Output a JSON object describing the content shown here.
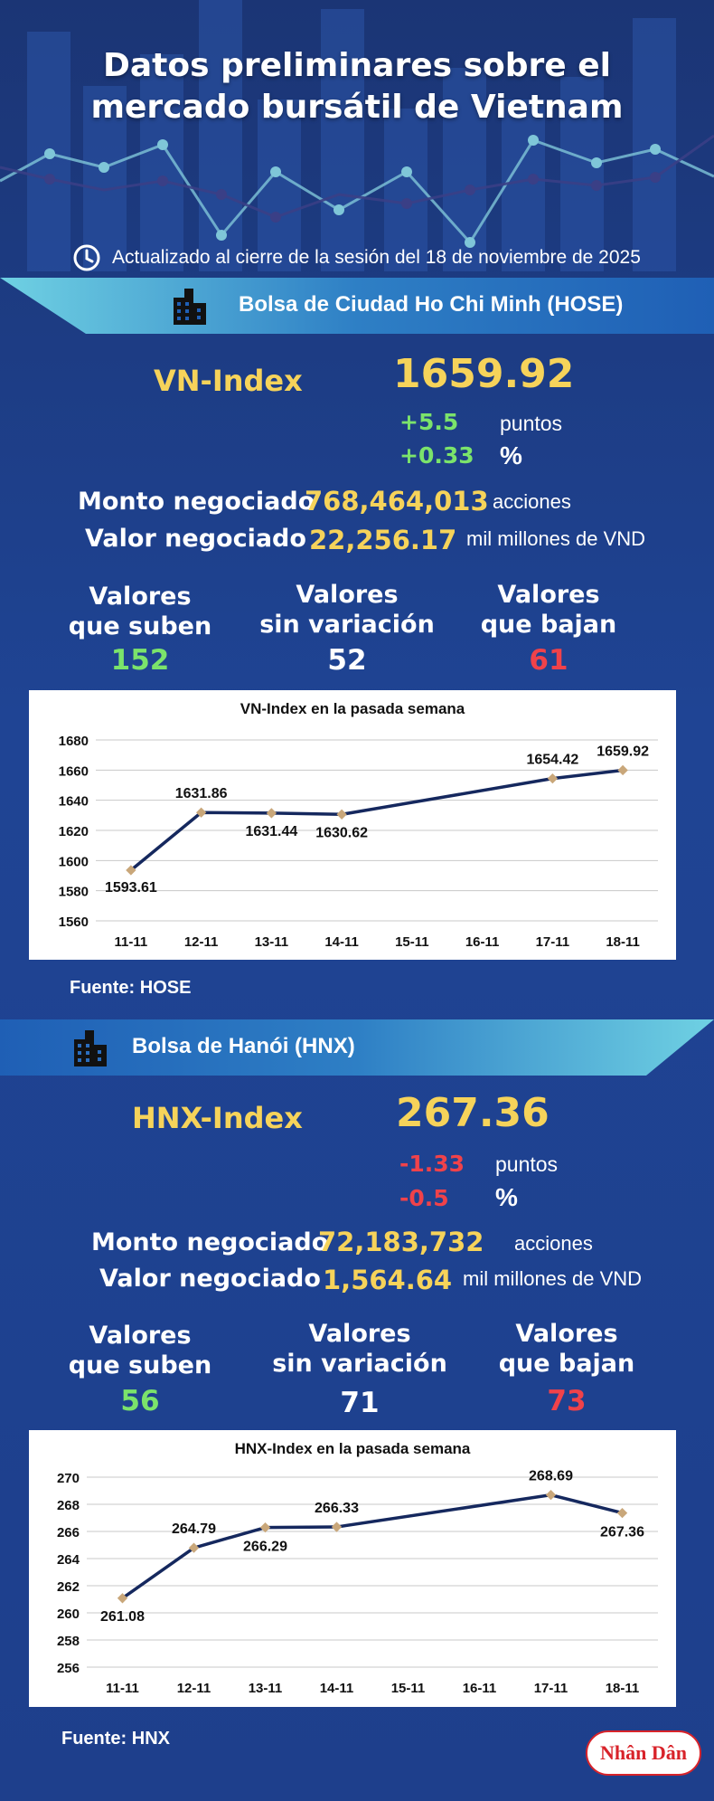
{
  "title_line1": "Datos preliminares sobre el",
  "title_line2": "mercado bursátil de Vietnam",
  "updated": "Actualizado al cierre de la sesión del 18 de noviembre de 2025",
  "hose": {
    "exchange": "Bolsa de Ciudad Ho Chi Minh (HOSE)",
    "index_name": "VN-Index",
    "index_value": "1659.92",
    "change_points": "+5.5",
    "change_points_unit": "puntos",
    "change_pct": "+0.33",
    "change_pct_unit": "%",
    "volume_label": "Monto negociado",
    "volume_value": "768,464,013",
    "volume_unit": "acciones",
    "value_label": "Valor negociado",
    "value_value": "22,256.17",
    "value_unit": "mil millones de VND",
    "up_label_1": "Valores",
    "up_label_2": "que suben",
    "up_count": "152",
    "flat_label_1": "Valores",
    "flat_label_2": "sin variación",
    "flat_count": "52",
    "down_label_1": "Valores",
    "down_label_2": "que bajan",
    "down_count": "61",
    "source": "Fuente: HOSE"
  },
  "hnx": {
    "exchange": "Bolsa de Hanói (HNX)",
    "index_name": "HNX-Index",
    "index_value": "267.36",
    "change_points": "-1.33",
    "change_points_unit": "puntos",
    "change_pct": "-0.5",
    "change_pct_unit": "%",
    "volume_label": "Monto negociado",
    "volume_value": "72,183,732",
    "volume_unit": "acciones",
    "value_label": "Valor negociado",
    "value_value": "1,564.64",
    "value_unit": "mil millones de VND",
    "up_label_1": "Valores",
    "up_label_2": "que suben",
    "up_count": "56",
    "flat_label_1": "Valores",
    "flat_label_2": "sin variación",
    "flat_count": "71",
    "down_label_1": "Valores",
    "down_label_2": "que bajan",
    "down_count": "73",
    "source": "Fuente:  HNX"
  },
  "logo_text": "Nhân Dân",
  "colors": {
    "accent_yellow": "#f6d35a",
    "up_green": "#7be36b",
    "down_red": "#f0424a",
    "line_navy": "#15285e",
    "marker": "#c9a77a"
  },
  "chart_data": [
    {
      "type": "line",
      "title": "VN-Index en la pasada semana",
      "x": [
        "11-11",
        "12-11",
        "13-11",
        "14-11",
        "15-11",
        "16-11",
        "17-11",
        "18-11"
      ],
      "points": [
        {
          "x": "11-11",
          "y": 1593.61,
          "label": "1593.61"
        },
        {
          "x": "12-11",
          "y": 1631.86,
          "label": "1631.86"
        },
        {
          "x": "13-11",
          "y": 1631.44,
          "label": "1631.44"
        },
        {
          "x": "14-11",
          "y": 1630.62,
          "label": "1630.62"
        },
        {
          "x": "17-11",
          "y": 1654.42,
          "label": "1654.42"
        },
        {
          "x": "18-11",
          "y": 1659.92,
          "label": "1659.92"
        }
      ],
      "yticks": [
        "1560",
        "1580",
        "1600",
        "1620",
        "1640",
        "1660",
        "1680"
      ],
      "ylim": [
        1560,
        1680
      ],
      "grid": true,
      "legend": "none"
    },
    {
      "type": "line",
      "title": "HNX-Index en la pasada semana",
      "x": [
        "11-11",
        "12-11",
        "13-11",
        "14-11",
        "15-11",
        "16-11",
        "17-11",
        "18-11"
      ],
      "points": [
        {
          "x": "11-11",
          "y": 261.08,
          "label": "261.08"
        },
        {
          "x": "12-11",
          "y": 264.79,
          "label": "264.79"
        },
        {
          "x": "13-11",
          "y": 266.29,
          "label": "266.29"
        },
        {
          "x": "14-11",
          "y": 266.33,
          "label": "266.33"
        },
        {
          "x": "17-11",
          "y": 268.69,
          "label": "268.69"
        },
        {
          "x": "18-11",
          "y": 267.36,
          "label": "267.36"
        }
      ],
      "yticks": [
        "256",
        "258",
        "260",
        "262",
        "264",
        "266",
        "268",
        "270"
      ],
      "ylim": [
        256,
        270
      ],
      "grid": true,
      "legend": "none"
    }
  ]
}
